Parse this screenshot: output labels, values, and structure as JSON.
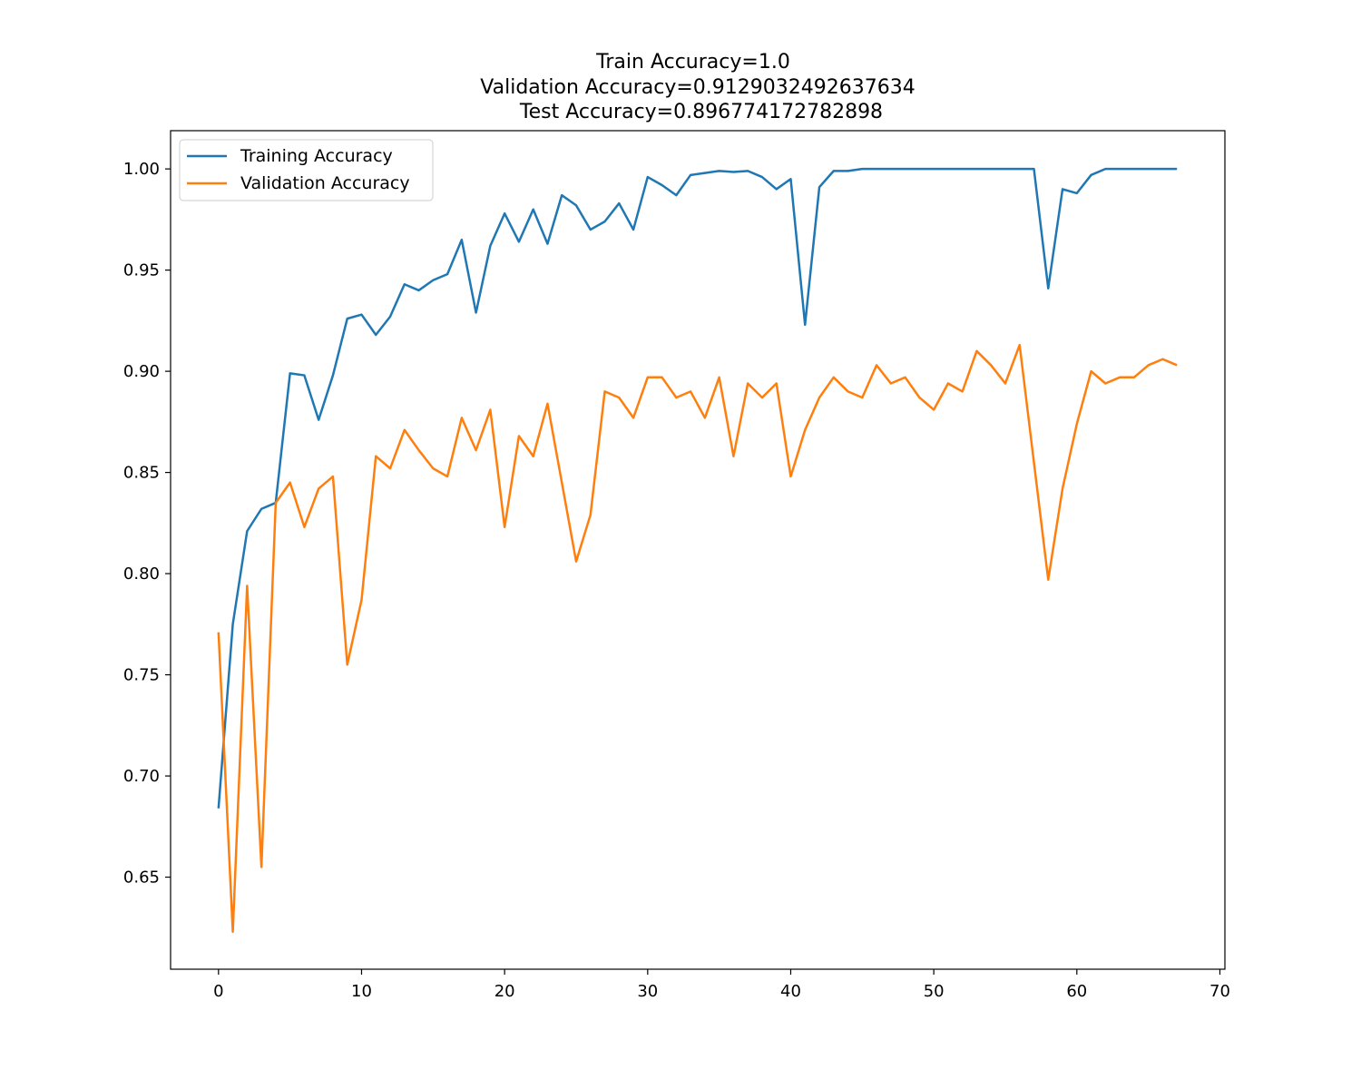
{
  "chart_data": {
    "type": "line",
    "title_lines": [
      "Train Accuracy=1.0",
      "Validation Accuracy=0.9129032492637634",
      "Test Accuracy=0.896774172782898"
    ],
    "xlabel": "",
    "ylabel": "",
    "xlim": [
      -3.35,
      70.35
    ],
    "ylim": [
      0.6045,
      1.0189
    ],
    "x_ticks": [
      0,
      10,
      20,
      30,
      40,
      50,
      60,
      70
    ],
    "x_tick_labels": [
      "0",
      "10",
      "20",
      "30",
      "40",
      "50",
      "60",
      "70"
    ],
    "y_ticks": [
      0.65,
      0.7,
      0.75,
      0.8,
      0.85,
      0.9,
      0.95,
      1.0
    ],
    "y_tick_labels": [
      "0.65",
      "0.70",
      "0.75",
      "0.80",
      "0.85",
      "0.90",
      "0.95",
      "1.00"
    ],
    "grid": false,
    "legend_position": "upper-left",
    "x": [
      0,
      1,
      2,
      3,
      4,
      5,
      6,
      7,
      8,
      9,
      10,
      11,
      12,
      13,
      14,
      15,
      16,
      17,
      18,
      19,
      20,
      21,
      22,
      23,
      24,
      25,
      26,
      27,
      28,
      29,
      30,
      31,
      32,
      33,
      34,
      35,
      36,
      37,
      38,
      39,
      40,
      41,
      42,
      43,
      44,
      45,
      46,
      47,
      48,
      49,
      50,
      51,
      52,
      53,
      54,
      55,
      56,
      57,
      58,
      59,
      60,
      61,
      62,
      63,
      64,
      65,
      66,
      67
    ],
    "series": [
      {
        "name": "Training Accuracy",
        "color": "#1f77b4",
        "values": [
          0.684,
          0.775,
          0.821,
          0.832,
          0.835,
          0.899,
          0.898,
          0.876,
          0.898,
          0.926,
          0.928,
          0.918,
          0.927,
          0.943,
          0.94,
          0.945,
          0.948,
          0.965,
          0.929,
          0.962,
          0.978,
          0.964,
          0.98,
          0.963,
          0.987,
          0.982,
          0.97,
          0.974,
          0.983,
          0.97,
          0.996,
          0.992,
          0.987,
          0.997,
          0.998,
          0.999,
          0.9985,
          0.999,
          0.996,
          0.99,
          0.995,
          0.923,
          0.991,
          0.999,
          0.999,
          1.0,
          1.0,
          1.0,
          1.0,
          1.0,
          1.0,
          1.0,
          1.0,
          1.0,
          1.0,
          1.0,
          1.0,
          1.0,
          0.941,
          0.99,
          0.988,
          0.997,
          1.0,
          1.0,
          1.0,
          1.0,
          1.0,
          1.0
        ]
      },
      {
        "name": "Validation Accuracy",
        "color": "#ff7f0e",
        "values": [
          0.771,
          0.623,
          0.794,
          0.655,
          0.835,
          0.845,
          0.823,
          0.842,
          0.848,
          0.755,
          0.787,
          0.858,
          0.852,
          0.871,
          0.861,
          0.852,
          0.848,
          0.877,
          0.861,
          0.881,
          0.823,
          0.868,
          0.858,
          0.884,
          0.845,
          0.806,
          0.829,
          0.89,
          0.887,
          0.877,
          0.897,
          0.897,
          0.887,
          0.89,
          0.877,
          0.897,
          0.858,
          0.894,
          0.887,
          0.894,
          0.848,
          0.871,
          0.887,
          0.897,
          0.89,
          0.887,
          0.903,
          0.894,
          0.897,
          0.887,
          0.881,
          0.894,
          0.89,
          0.91,
          0.903,
          0.894,
          0.913,
          0.855,
          0.797,
          0.842,
          0.874,
          0.9,
          0.894,
          0.897,
          0.897,
          0.903,
          0.906,
          0.903
        ]
      }
    ]
  }
}
